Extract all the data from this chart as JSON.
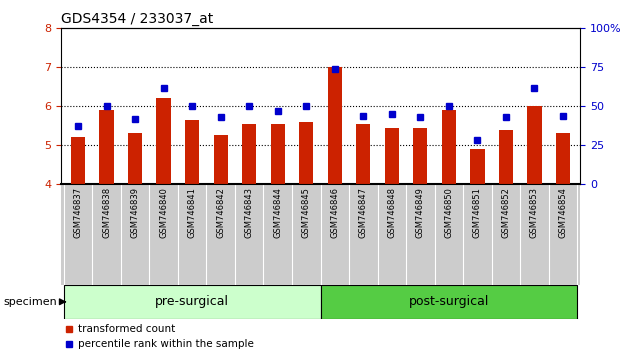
{
  "title": "GDS4354 / 233037_at",
  "samples": [
    "GSM746837",
    "GSM746838",
    "GSM746839",
    "GSM746840",
    "GSM746841",
    "GSM746842",
    "GSM746843",
    "GSM746844",
    "GSM746845",
    "GSM746846",
    "GSM746847",
    "GSM746848",
    "GSM746849",
    "GSM746850",
    "GSM746851",
    "GSM746852",
    "GSM746853",
    "GSM746854"
  ],
  "bar_values": [
    5.2,
    5.9,
    5.3,
    6.2,
    5.65,
    5.25,
    5.55,
    5.55,
    5.6,
    7.0,
    5.55,
    5.45,
    5.45,
    5.9,
    4.9,
    5.4,
    6.0,
    5.3
  ],
  "percentile_values": [
    37,
    50,
    42,
    62,
    50,
    43,
    50,
    47,
    50,
    74,
    44,
    45,
    43,
    50,
    28,
    43,
    62,
    44
  ],
  "bar_color": "#cc2200",
  "dot_color": "#0000cc",
  "ylim_left": [
    4,
    8
  ],
  "ylim_right": [
    0,
    100
  ],
  "yticks_left": [
    4,
    5,
    6,
    7,
    8
  ],
  "yticks_right": [
    0,
    25,
    50,
    75,
    100
  ],
  "yticklabels_right": [
    "0",
    "25",
    "50",
    "75",
    "100%"
  ],
  "grid_yticks": [
    5,
    6,
    7
  ],
  "groups": [
    {
      "label": "pre-surgical",
      "start": 0,
      "end": 9,
      "color": "#ccffcc"
    },
    {
      "label": "post-surgical",
      "start": 9,
      "end": 18,
      "color": "#55cc44"
    }
  ],
  "specimen_label": "specimen",
  "legend_items": [
    {
      "label": "transformed count",
      "color": "#cc2200"
    },
    {
      "label": "percentile rank within the sample",
      "color": "#0000cc"
    }
  ],
  "background_color": "#ffffff",
  "tick_label_color_left": "#cc2200",
  "tick_label_color_right": "#0000cc",
  "bar_width": 0.5,
  "xlabel_area_color": "#cccccc",
  "divider_color": "#aaaaaa"
}
